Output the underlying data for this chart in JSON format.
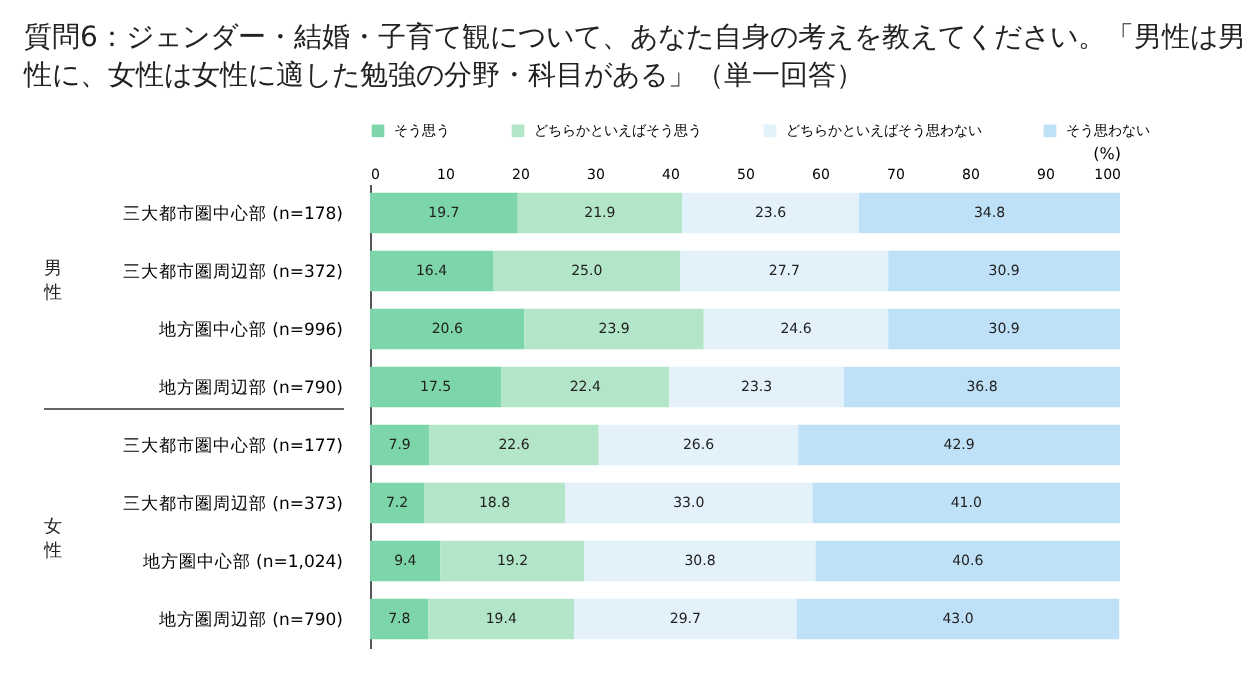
{
  "chart_data": {
    "type": "bar",
    "orientation": "horizontal",
    "stacked": true,
    "title": "質問6：ジェンダー・結婚・子育て観について、あなた自身の考えを教えてください。「男性は男性に、女性は女性に適した勉強の分野・科目がある」（単一回答）",
    "xlabel": "(%)",
    "categories": [
      "三大都市圏中心部 (n=178)",
      "三大都市圏周辺部 (n=372)",
      "地方圏中心部 (n=996)",
      "地方圏周辺部 (n=790)",
      "三大都市圏中心部 (n=177)",
      "三大都市圏周辺部 (n=373)",
      "地方圏中心部 (n=1,024)",
      "地方圏周辺部 (n=790)"
    ],
    "annotations": [
      "男性",
      "女性"
    ],
    "series": [
      {
        "name": "そう思う",
        "color": "#7dd6a9",
        "values": [
          19.7,
          16.4,
          20.6,
          17.5,
          7.9,
          7.2,
          9.4,
          7.8
        ],
        "value_labels": [
          "19.7",
          "16.4",
          "20.6",
          "17.5",
          "7.9",
          "7.2",
          "9.4",
          "7.8"
        ]
      },
      {
        "name": "どちらかといえばそう思う",
        "color": "#b3e6c8",
        "values": [
          21.9,
          25.0,
          23.9,
          22.4,
          22.6,
          18.8,
          19.2,
          19.4
        ],
        "value_labels": [
          "21.9",
          "25.0",
          "23.9",
          "22.4",
          "22.6",
          "18.8",
          "19.2",
          "19.4"
        ]
      },
      {
        "name": "どちらかといえばそう思わない",
        "color": "#e3f1fa",
        "values": [
          23.6,
          27.7,
          24.6,
          23.3,
          26.6,
          33.0,
          30.8,
          29.7
        ],
        "value_labels": [
          "23.6",
          "27.7",
          "24.6",
          "23.3",
          "26.6",
          "33.0",
          "30.8",
          "29.7"
        ]
      },
      {
        "name": "そう思わない",
        "color": "#bfe1f8",
        "values": [
          34.8,
          30.9,
          30.9,
          36.8,
          42.9,
          41.0,
          40.6,
          43.0
        ],
        "value_labels": [
          "34.8",
          "30.9",
          "30.9",
          "36.8",
          "42.9",
          "41.0",
          "40.6",
          "43.0"
        ]
      }
    ],
    "xlim": [
      0,
      100
    ],
    "xticks": [
      0,
      10,
      20,
      30,
      40,
      50,
      60,
      70,
      80,
      90,
      100
    ],
    "legend": "top",
    "grid": false
  }
}
